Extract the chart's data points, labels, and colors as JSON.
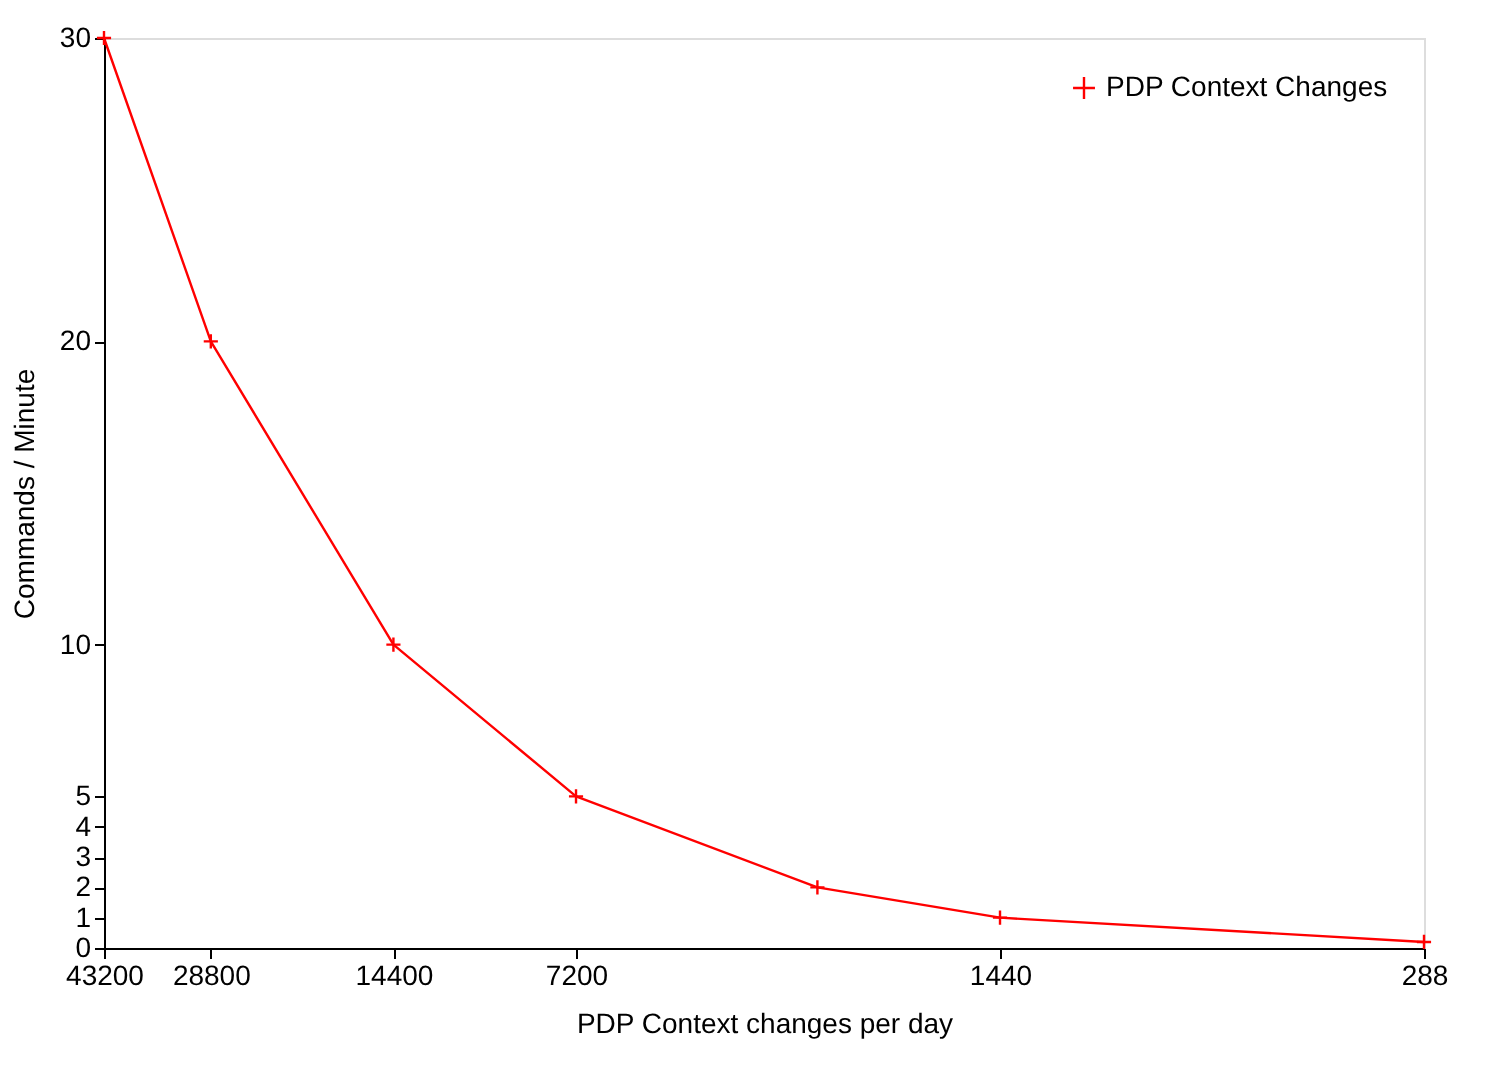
{
  "chart_data": {
    "type": "line",
    "xlabel": "PDP Context changes per day",
    "ylabel": "Commands / Minute",
    "x": [
      43200,
      28800,
      14400,
      7200,
      2880,
      1440,
      288
    ],
    "series": [
      {
        "name": "PDP Context Changes",
        "color": "#ff0000",
        "values": [
          30,
          20,
          10,
          5,
          2,
          1,
          0.2
        ]
      }
    ],
    "log": "x",
    "xlim": [
      43200,
      288
    ],
    "xticks": [
      43200,
      28800,
      14400,
      7200,
      1440,
      288
    ],
    "ylim": [
      0,
      30
    ],
    "yticks": [
      0,
      1,
      2,
      3,
      4,
      5,
      10,
      20,
      30
    ],
    "grid": false,
    "legend": "top right",
    "marker": "cross",
    "line_style": "solid"
  }
}
